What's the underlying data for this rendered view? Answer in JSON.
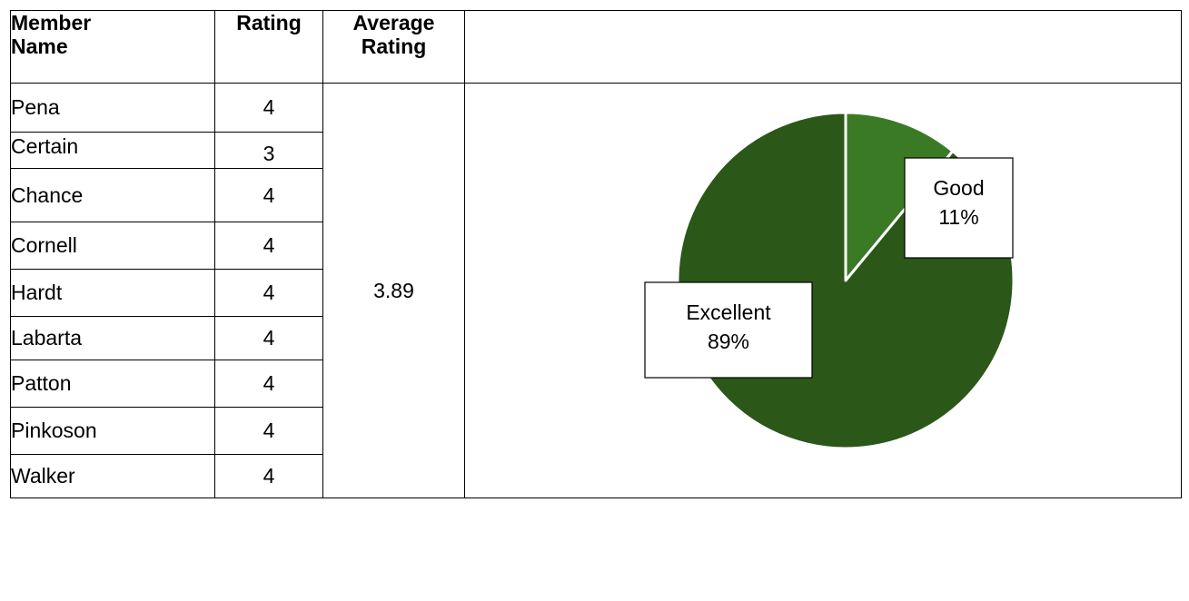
{
  "table": {
    "headers": {
      "name": [
        "Member",
        "Name"
      ],
      "rating": "Rating",
      "average": [
        "Average",
        "Rating"
      ]
    },
    "rows": [
      {
        "name": "Pena",
        "rating": "4"
      },
      {
        "name": "Certain",
        "rating": "3"
      },
      {
        "name": "Chance",
        "rating": "4"
      },
      {
        "name": "Cornell",
        "rating": "4"
      },
      {
        "name": "Hardt",
        "rating": "4"
      },
      {
        "name": "Labarta",
        "rating": "4"
      },
      {
        "name": "Patton",
        "rating": "4"
      },
      {
        "name": "Pinkoson",
        "rating": "4"
      },
      {
        "name": "Walker",
        "rating": "4"
      }
    ],
    "average_rating": "3.89"
  },
  "chart_data": {
    "type": "pie",
    "title": "",
    "slices": [
      {
        "label": "Good",
        "value": 11,
        "display": "11%",
        "color": "#3b7a25"
      },
      {
        "label": "Excellent",
        "value": 89,
        "display": "89%",
        "color": "#2b5719"
      }
    ],
    "slice_border_color": "#ffffff",
    "labels_boxed": true
  }
}
